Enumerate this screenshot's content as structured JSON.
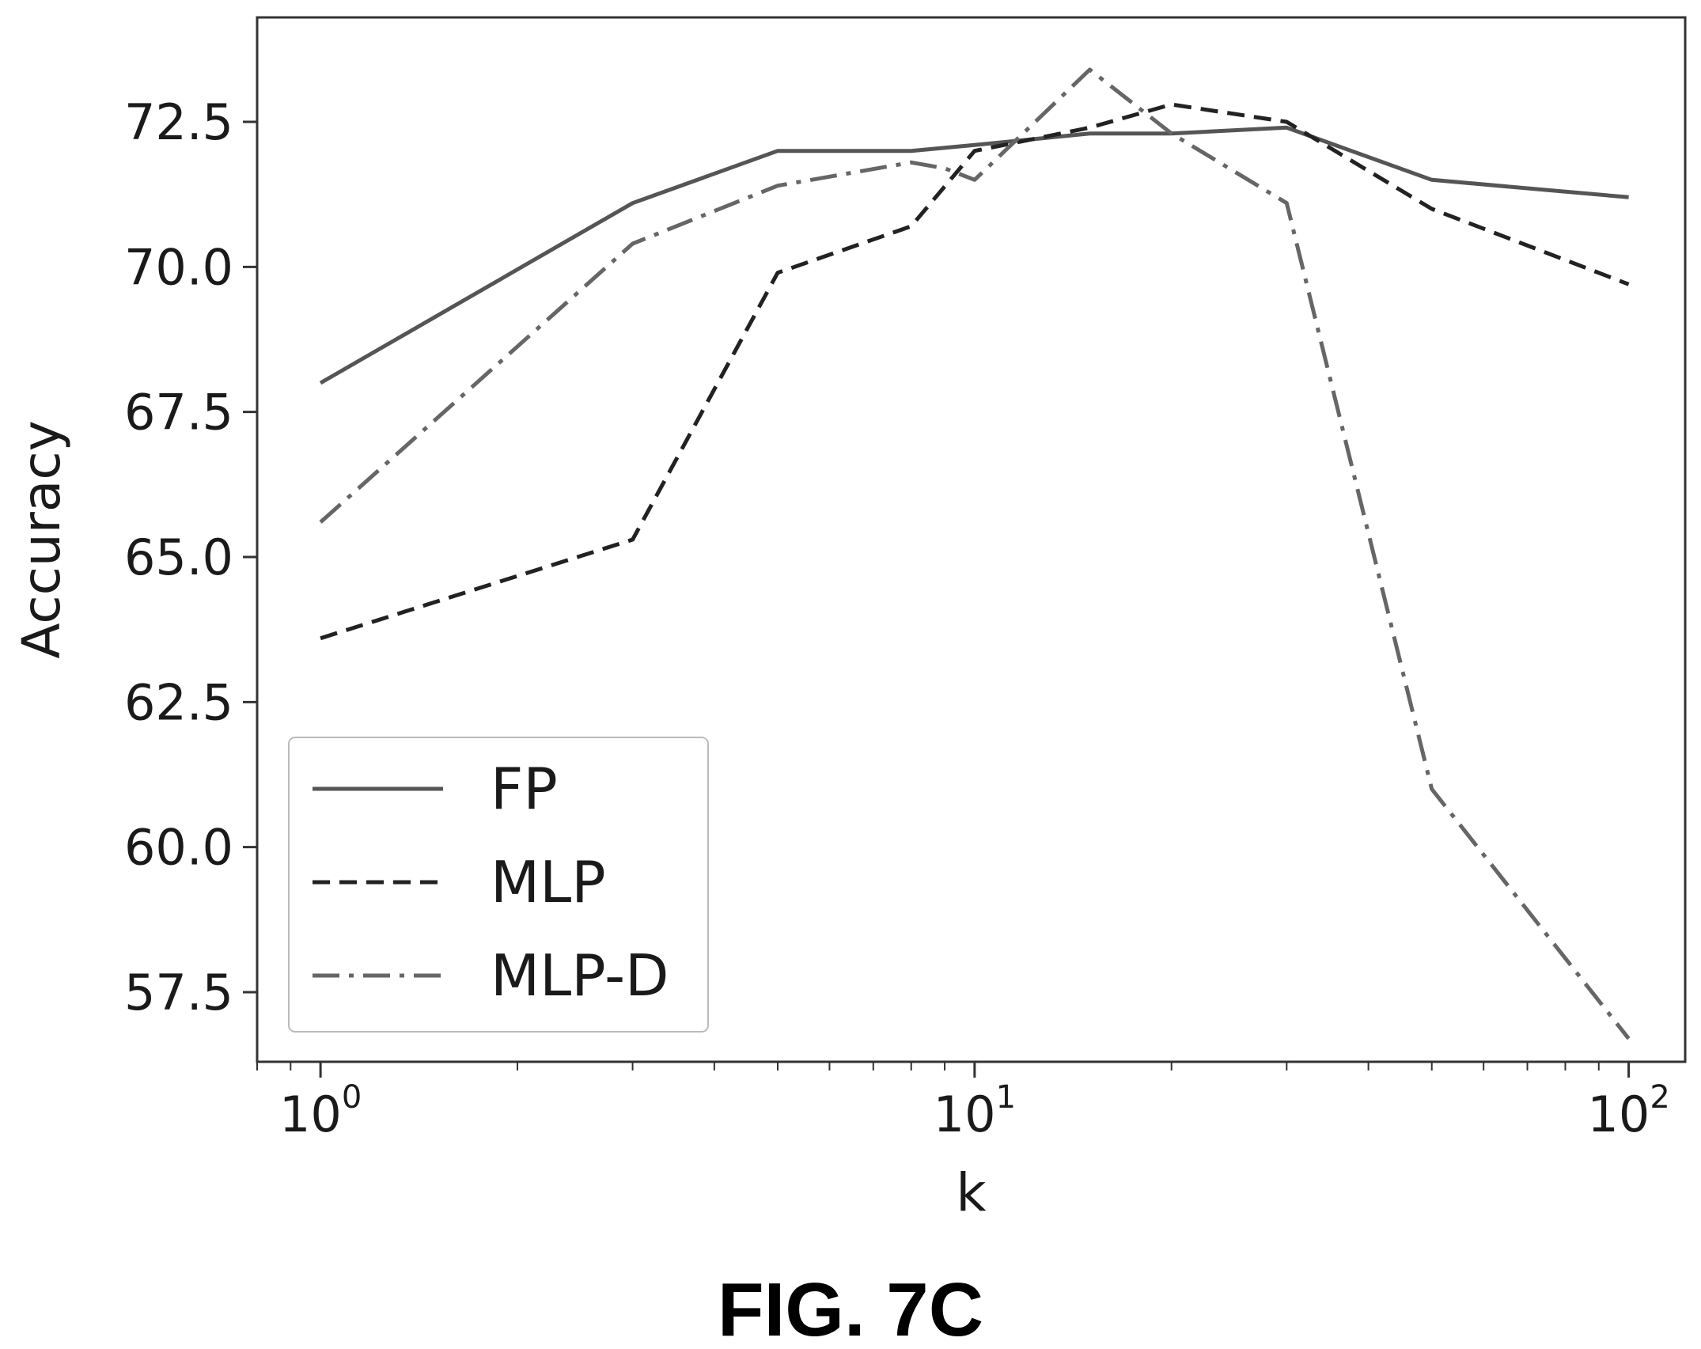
{
  "chart_data": {
    "type": "line",
    "xlabel": "k",
    "ylabel": "Accuracy",
    "x_scale": "log",
    "xlim": [
      0.8,
      122
    ],
    "ylim": [
      56.3,
      74.3
    ],
    "x_ticks": [
      {
        "value": 1,
        "base": "10",
        "exp": "0"
      },
      {
        "value": 10,
        "base": "10",
        "exp": "1"
      },
      {
        "value": 100,
        "base": "10",
        "exp": "2"
      }
    ],
    "y_ticks": [
      {
        "value": 57.5,
        "label": "57.5"
      },
      {
        "value": 60.0,
        "label": "60.0"
      },
      {
        "value": 62.5,
        "label": "62.5"
      },
      {
        "value": 65.0,
        "label": "65.0"
      },
      {
        "value": 67.5,
        "label": "67.5"
      },
      {
        "value": 70.0,
        "label": "70.0"
      },
      {
        "value": 72.5,
        "label": "72.5"
      }
    ],
    "grid": false,
    "legend_position": "lower-left",
    "series": [
      {
        "name": "FP",
        "style": "solid",
        "color": "#555555",
        "x": [
          1,
          3,
          5,
          8,
          10,
          15,
          20,
          30,
          50,
          100
        ],
        "y": [
          68.0,
          71.1,
          72.0,
          72.0,
          72.1,
          72.3,
          72.3,
          72.4,
          71.5,
          71.2
        ]
      },
      {
        "name": "MLP",
        "style": "dashed",
        "color": "#222222",
        "x": [
          1,
          3,
          5,
          8,
          10,
          15,
          20,
          30,
          50,
          100
        ],
        "y": [
          63.6,
          65.3,
          69.9,
          70.7,
          72.0,
          72.4,
          72.8,
          72.5,
          71.0,
          69.7
        ]
      },
      {
        "name": "MLP-D",
        "style": "dashdot",
        "color": "#666666",
        "x": [
          1,
          3,
          5,
          8,
          9,
          10,
          15,
          20,
          30,
          50,
          100
        ],
        "y": [
          65.6,
          70.4,
          71.4,
          71.8,
          71.7,
          71.5,
          73.4,
          72.3,
          71.1,
          61.0,
          56.7
        ]
      }
    ]
  },
  "caption": "FIG. 7C"
}
